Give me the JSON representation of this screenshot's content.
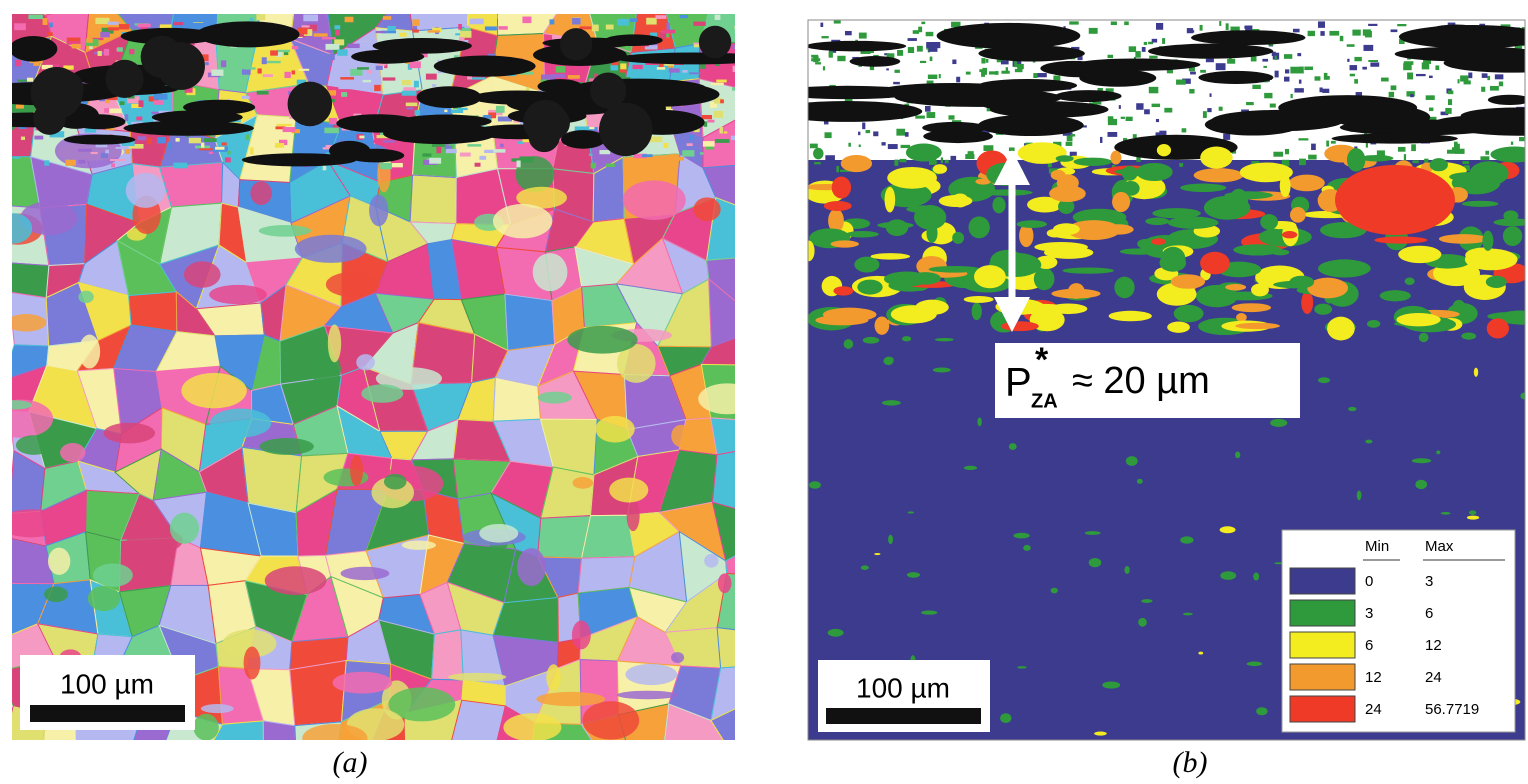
{
  "panels": [
    {
      "scale_bar": "100 µm",
      "caption": "(a)"
    },
    {
      "scale_bar": "100 µm",
      "caption": "(b)"
    }
  ],
  "annotation": {
    "symbol": "P",
    "superscript": "*",
    "subscript": "ZA",
    "text": "≈ 20 µm"
  },
  "legend": {
    "headers": [
      "Min",
      "Max"
    ],
    "rows": [
      [
        "0",
        "3"
      ],
      [
        "3",
        "6"
      ],
      [
        "6",
        "12"
      ],
      [
        "12",
        "24"
      ],
      [
        "24",
        "56.7719"
      ]
    ],
    "colors": [
      "#3d3b8e",
      "#2e9a3c",
      "#f3ec1e",
      "#f39a2e",
      "#ee3a26"
    ]
  }
}
